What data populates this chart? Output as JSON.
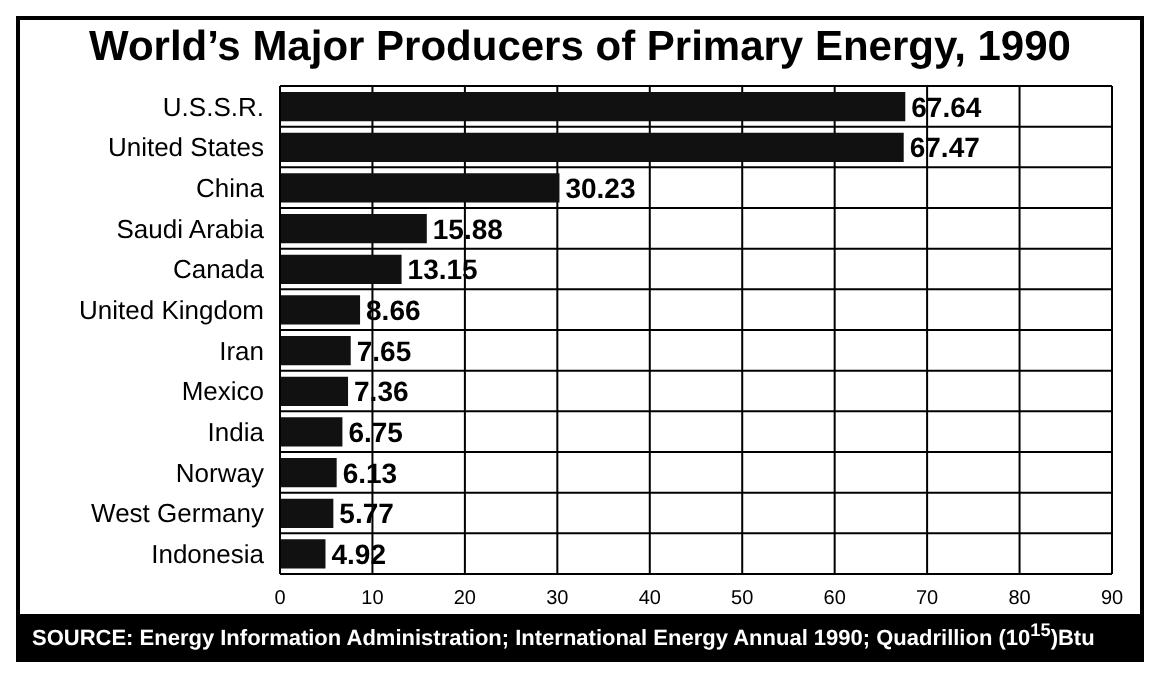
{
  "chart_data": {
    "type": "bar",
    "orientation": "horizontal",
    "title": "World’s Major Producers of Primary Energy, 1990",
    "categories": [
      "U.S.S.R.",
      "United States",
      "China",
      "Saudi Arabia",
      "Canada",
      "United Kingdom",
      "Iran",
      "Mexico",
      "India",
      "Norway",
      "West Germany",
      "Indonesia"
    ],
    "values": [
      67.64,
      67.47,
      30.23,
      15.88,
      13.15,
      8.66,
      7.65,
      7.36,
      6.75,
      6.13,
      5.77,
      4.92
    ],
    "color": "#111111",
    "xlim": [
      0,
      90
    ],
    "xticks": [
      0,
      10,
      20,
      30,
      40,
      50,
      60,
      70,
      80,
      90
    ],
    "grid": true,
    "data_labels": true,
    "annotations": [
      "SOURCE: Energy Information Administration; International Energy Annual 1990; Quadrillion (10$^{15}$)Btu"
    ]
  }
}
